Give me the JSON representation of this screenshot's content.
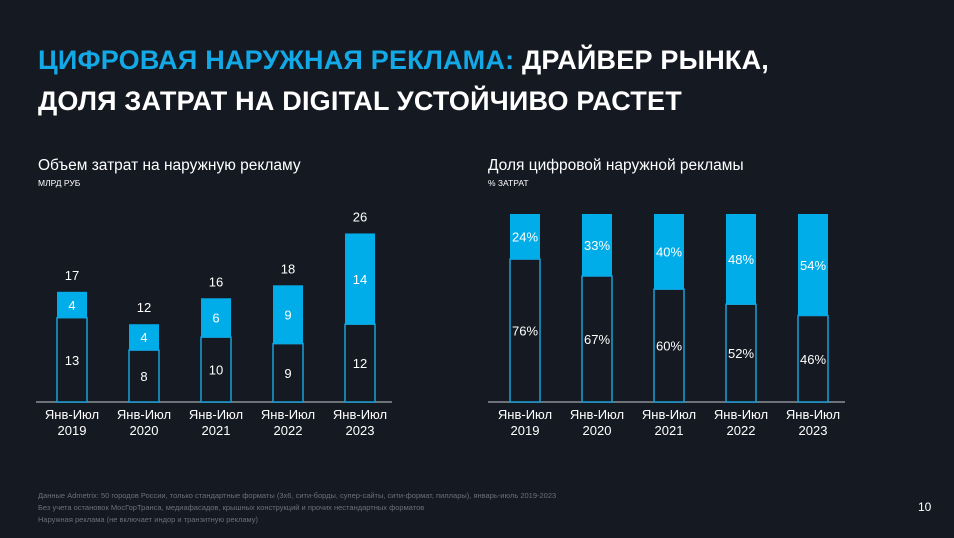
{
  "title": {
    "accent": "ЦИФРОВАЯ НАРУЖНАЯ РЕКЛАМА:",
    "rest": " ДРАЙВЕР РЫНКА,",
    "line2": "ДОЛЯ ЗАТРАТ НА DIGITAL УСТОЙЧИВО РАСТЕТ"
  },
  "colors": {
    "background": "#151922",
    "accent": "#00ade8",
    "outline": "#1b9fd6"
  },
  "chart_data": [
    {
      "type": "bar",
      "stacked": true,
      "title": "Объем затрат на наружную рекламу",
      "ylabel": "МЛРД РУБ",
      "categories": [
        [
          "Янв-Июл",
          "2019"
        ],
        [
          "Янв-Июл",
          "2020"
        ],
        [
          "Янв-Июл",
          "2021"
        ],
        [
          "Янв-Июл",
          "2022"
        ],
        [
          "Янв-Июл",
          "2023"
        ]
      ],
      "series": [
        {
          "values": [
            13,
            8,
            10,
            9,
            12
          ]
        },
        {
          "values": [
            4,
            4,
            6,
            9,
            14
          ]
        }
      ],
      "totals": [
        17,
        12,
        16,
        18,
        26
      ],
      "ylim": [
        0,
        29
      ]
    },
    {
      "type": "bar",
      "stacked": true,
      "title": "Доля цифровой наружной рекламы",
      "ylabel": "% ЗАТРАТ",
      "categories": [
        [
          "Янв-Июл",
          "2019"
        ],
        [
          "Янв-Июл",
          "2020"
        ],
        [
          "Янв-Июл",
          "2021"
        ],
        [
          "Янв-Июл",
          "2022"
        ],
        [
          "Янв-Июл",
          "2023"
        ]
      ],
      "series": [
        {
          "values": [
            76,
            67,
            60,
            52,
            46
          ]
        },
        {
          "values": [
            24,
            33,
            40,
            48,
            54
          ]
        }
      ],
      "value_suffix": "%",
      "ylim": [
        0,
        100
      ]
    }
  ],
  "footnotes": [
    "Данные Admetrix: 50 городов России, только стандартные форматы (3х6, сити-борды, супер-сайты, сити-формат, пиллары), январь-июль 2019-2023",
    "Без учета остановок МосГорТранса, медиафасадов, крышных конструкций и прочих нестандартных форматов",
    "Наружная реклама (не включает индор и транзитную рекламу)"
  ],
  "page_number": "10"
}
